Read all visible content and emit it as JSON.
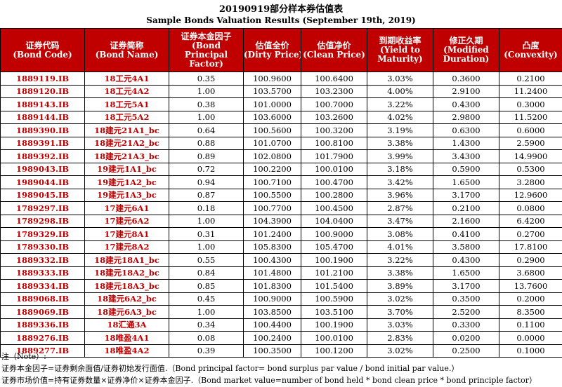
{
  "title_cn": "20190919部分样本券估值表",
  "title_en": "Sample Bonds Valuation Results (September 19th, 2019)",
  "columns": [
    {
      "cn": "证券代码",
      "en": "(Bond Code)"
    },
    {
      "cn": "证券简称",
      "en": "(Bond Name)"
    },
    {
      "cn": "证券本金因子",
      "en": "(Bond Principal Factor)"
    },
    {
      "cn": "估值全价",
      "en": "(Dirty Price)"
    },
    {
      "cn": "估值净价",
      "en": "(Clean Price)"
    },
    {
      "cn": "到期收益率",
      "en": "(Yield to Maturity)"
    },
    {
      "cn": "修正久期",
      "en": "(Modified Duration)"
    },
    {
      "cn": "凸度",
      "en": "(Convexity)"
    }
  ],
  "rows": [
    [
      "1889119.IB",
      "18工元4A1",
      "0.35",
      "100.9600",
      "100.6400",
      "3.03%",
      "0.3600",
      "0.2100"
    ],
    [
      "1889120.IB",
      "18工元4A2",
      "1.00",
      "103.5700",
      "103.2300",
      "4.00%",
      "2.9100",
      "11.2400"
    ],
    [
      "1889143.IB",
      "18工元5A1",
      "0.38",
      "101.0000",
      "100.7000",
      "3.22%",
      "0.4300",
      "0.3000"
    ],
    [
      "1889144.IB",
      "18工元5A2",
      "1.00",
      "103.6000",
      "103.2600",
      "4.02%",
      "2.9800",
      "11.5200"
    ],
    [
      "1889390.IB",
      "18建元21A1_bc",
      "0.64",
      "100.5600",
      "100.3200",
      "3.19%",
      "0.6300",
      "0.6000"
    ],
    [
      "1889391.IB",
      "18建元21A2_bc",
      "0.88",
      "101.0700",
      "100.8100",
      "3.38%",
      "1.4300",
      "2.5900"
    ],
    [
      "1889392.IB",
      "18建元21A3_bc",
      "0.89",
      "102.0800",
      "101.7900",
      "3.99%",
      "3.4300",
      "14.9900"
    ],
    [
      "1989043.IB",
      "19建元1A1_bc",
      "0.72",
      "100.2200",
      "100.0100",
      "3.18%",
      "0.5900",
      "0.5300"
    ],
    [
      "1989044.IB",
      "19建元1A2_bc",
      "0.94",
      "100.7100",
      "100.4700",
      "3.42%",
      "1.6500",
      "3.2800"
    ],
    [
      "1989045.IB",
      "19建元1A3_bc",
      "0.87",
      "100.5500",
      "100.2800",
      "3.96%",
      "3.1700",
      "12.9600"
    ],
    [
      "1789297.IB",
      "17建元6A1",
      "0.18",
      "100.7700",
      "100.4500",
      "2.87%",
      "0.2100",
      "0.0800"
    ],
    [
      "1789298.IB",
      "17建元6A2",
      "1.00",
      "104.3900",
      "104.0400",
      "3.47%",
      "2.1600",
      "6.4200"
    ],
    [
      "1789329.IB",
      "17建元8A1",
      "0.31",
      "101.2400",
      "100.9000",
      "3.08%",
      "0.4100",
      "0.2700"
    ],
    [
      "1789330.IB",
      "17建元8A2",
      "1.00",
      "105.8300",
      "105.4700",
      "4.01%",
      "3.5800",
      "17.8100"
    ],
    [
      "1889332.IB",
      "18建元18A1_bc",
      "0.55",
      "100.4300",
      "100.1900",
      "3.22%",
      "0.4300",
      "0.2900"
    ],
    [
      "1889333.IB",
      "18建元18A2_bc",
      "0.84",
      "101.4800",
      "101.2100",
      "3.38%",
      "1.6500",
      "3.6800"
    ],
    [
      "1889334.IB",
      "18建元18A3_bc",
      "0.85",
      "101.8300",
      "101.5400",
      "3.89%",
      "3.1700",
      "13.7600"
    ],
    [
      "1889068.IB",
      "18建元6A2_bc",
      "0.45",
      "100.9000",
      "100.5900",
      "3.02%",
      "0.3500",
      "0.2000"
    ],
    [
      "1889069.IB",
      "18建元6A3_bc",
      "1.00",
      "103.8500",
      "103.5100",
      "3.70%",
      "2.5200",
      "8.3500"
    ],
    [
      "1889336.IB",
      "18汇通3A",
      "0.34",
      "100.4400",
      "100.1900",
      "3.03%",
      "0.3300",
      "0.1100"
    ],
    [
      "1889276.IB",
      "18唯盈4A1",
      "0.08",
      "100.2400",
      "100.0100",
      "2.83%",
      "0.0200",
      "0.0000"
    ],
    [
      "1889277.IB",
      "18唯盈4A2",
      "0.39",
      "100.3500",
      "100.1200",
      "3.02%",
      "0.2500",
      "0.1000"
    ]
  ],
  "notes": [
    "注（Note）:",
    "证券本金因子=证券剩余面值/证券初始发行面值.（Bond principal factor= bond surplus par value / bond initial par value.）",
    "证券市场价值=持有证券数量×证券净价×证券本金因子.（Bond market value=number of bond held * bond clean price * bond principle factor）"
  ]
}
